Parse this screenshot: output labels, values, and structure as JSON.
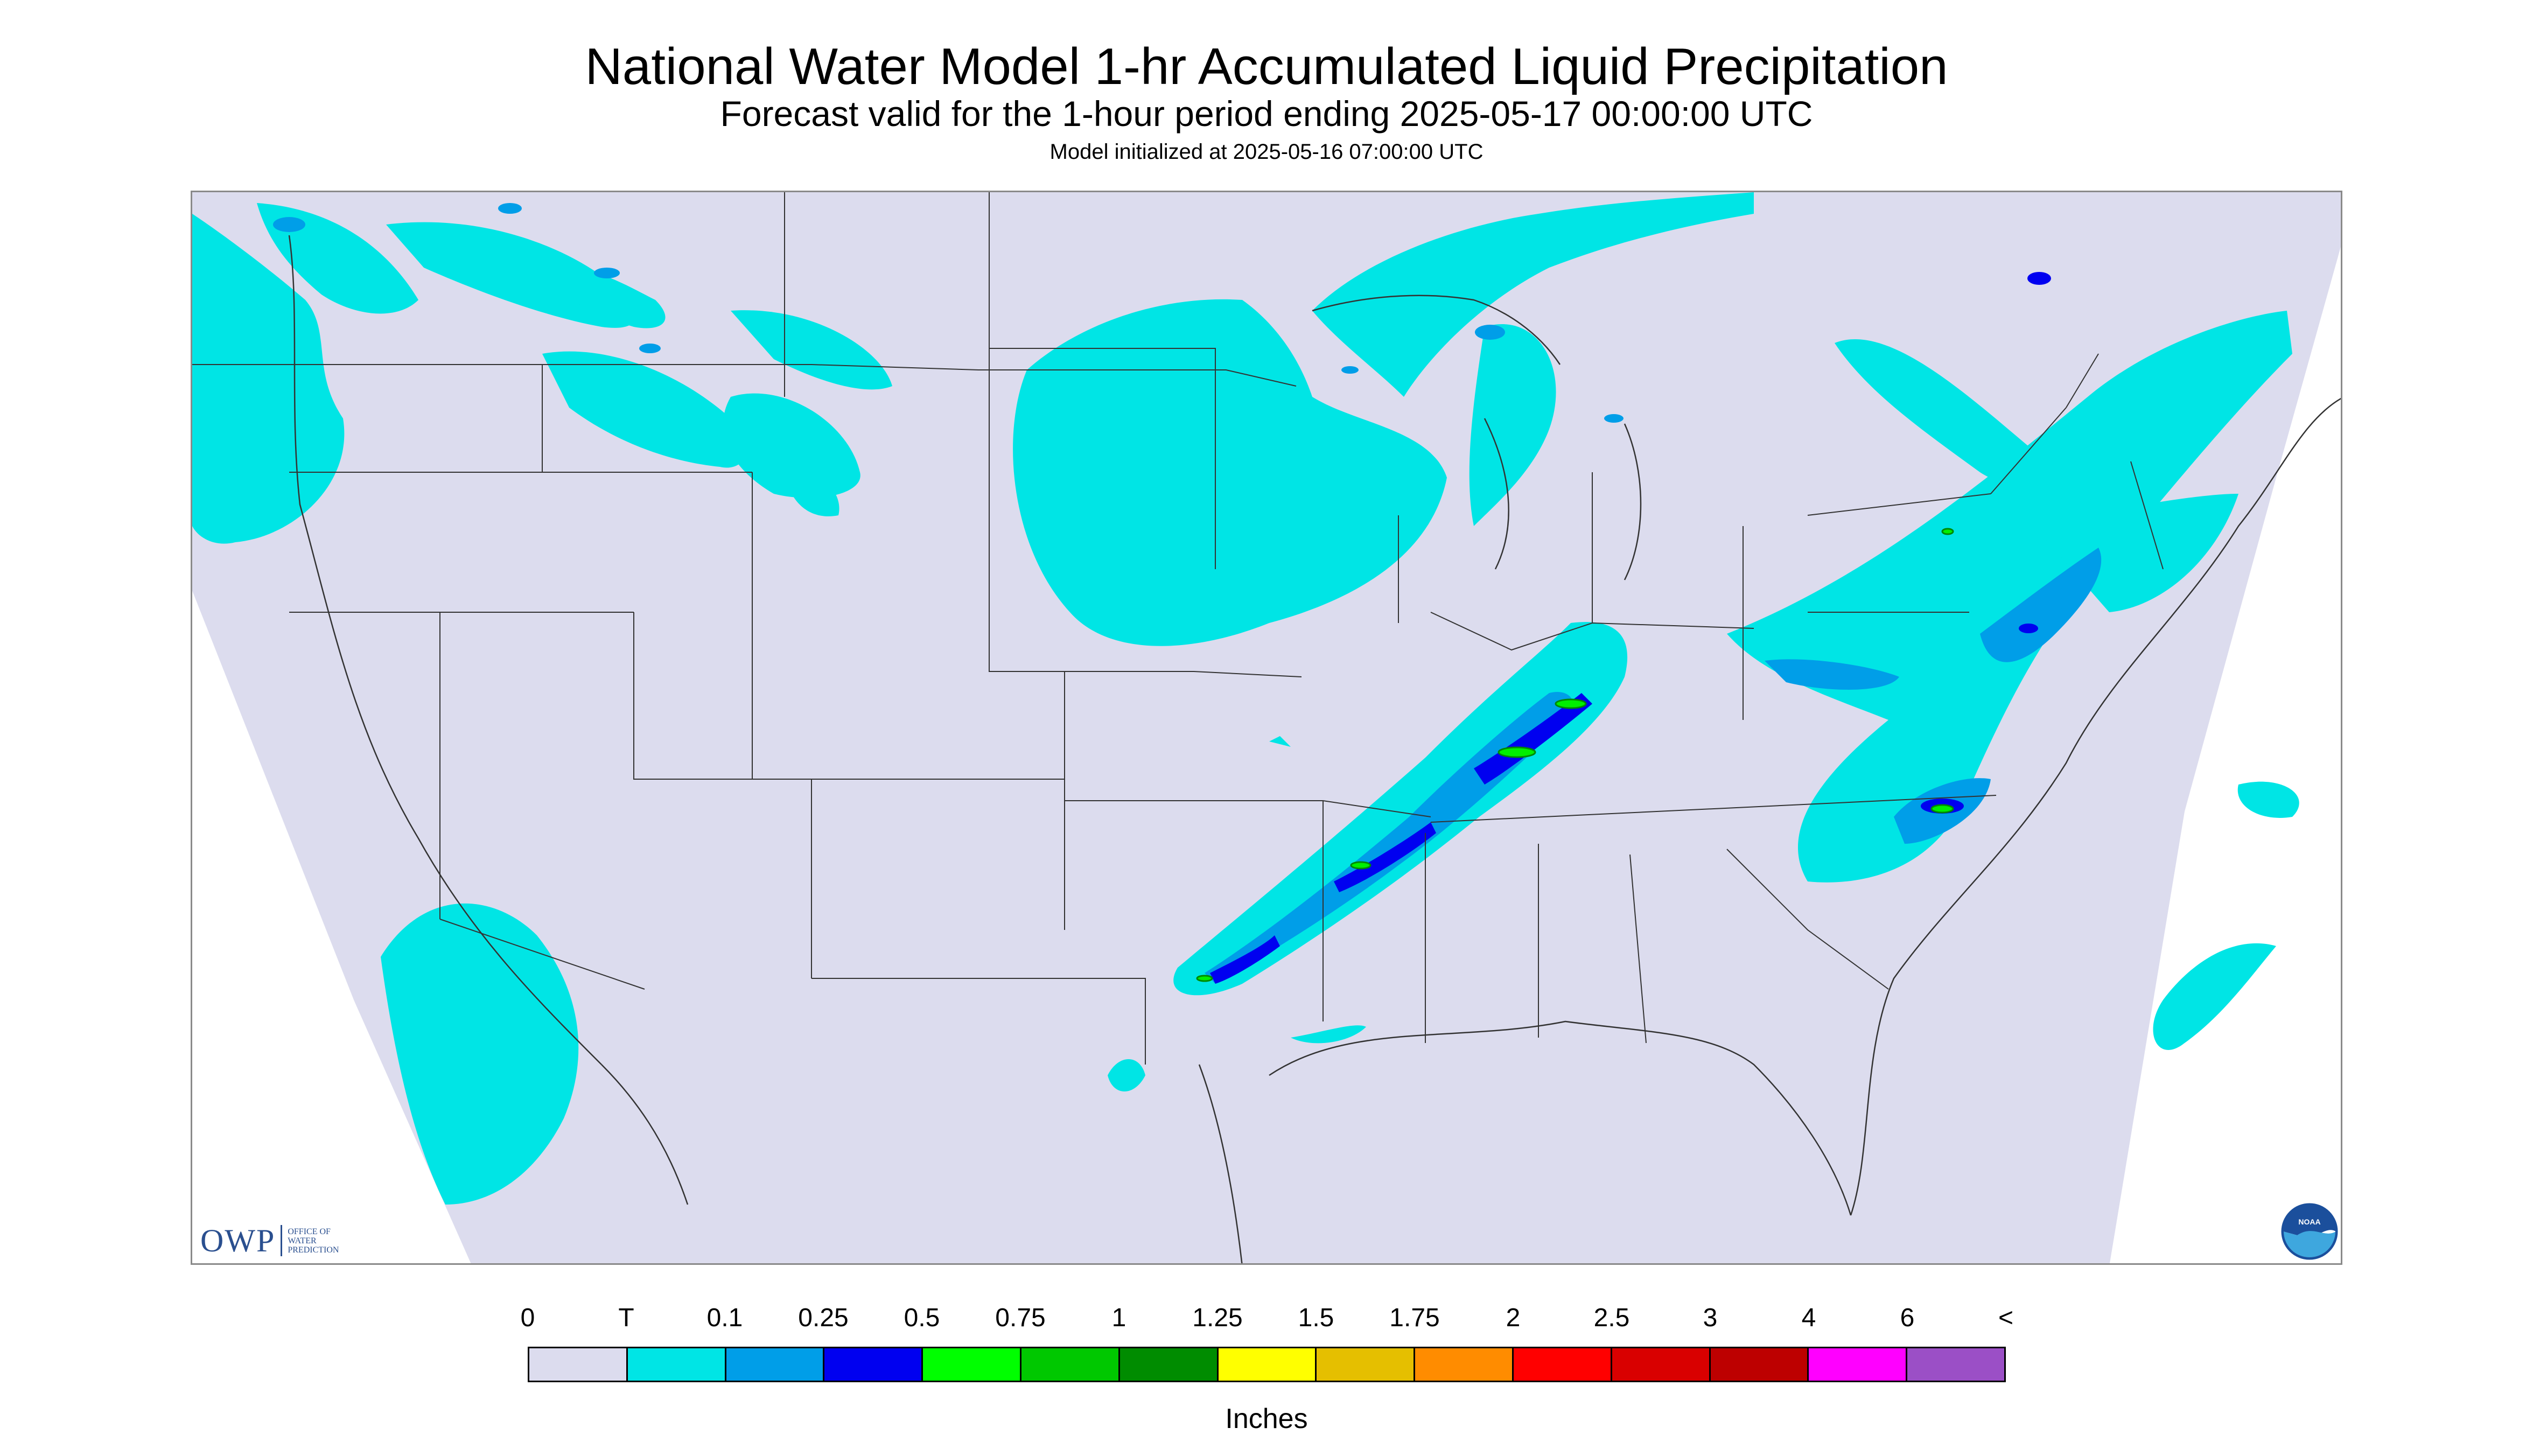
{
  "header": {
    "title": "National Water Model 1-hr Accumulated Liquid Precipitation",
    "subtitle": "Forecast valid for the 1-hour period ending 2025-05-17 00:00:00 UTC",
    "init": "Model initialized at 2025-05-16 07:00:00 UTC"
  },
  "map": {
    "background_color": "#dcdcee",
    "outside_color": "#ffffff",
    "border_color": "#333333",
    "precip_colors": {
      "trace": "#00e5e5",
      "light": "#009ee8",
      "moderate": "#0000f0",
      "heavy": "#00ef00",
      "dark_green": "#008a00",
      "yellow": "#ffff00"
    }
  },
  "logos": {
    "owp_mark": "OWP",
    "owp_text": "OFFICE OF\nWATER\nPREDICTION",
    "noaa_text": "NOAA"
  },
  "legend": {
    "labels": [
      "0",
      "T",
      "0.1",
      "0.25",
      "0.5",
      "0.75",
      "1",
      "1.25",
      "1.5",
      "1.75",
      "2",
      "2.5",
      "3",
      "4",
      "6",
      "<"
    ],
    "colors": [
      "#dcdcee",
      "#00e5e5",
      "#009ee8",
      "#0000f0",
      "#00ff00",
      "#00c800",
      "#008c00",
      "#ffff00",
      "#e5bf00",
      "#ff8c00",
      "#ff0000",
      "#d90000",
      "#bd0000",
      "#ff00ff",
      "#9b4fc6"
    ],
    "units": "Inches"
  }
}
